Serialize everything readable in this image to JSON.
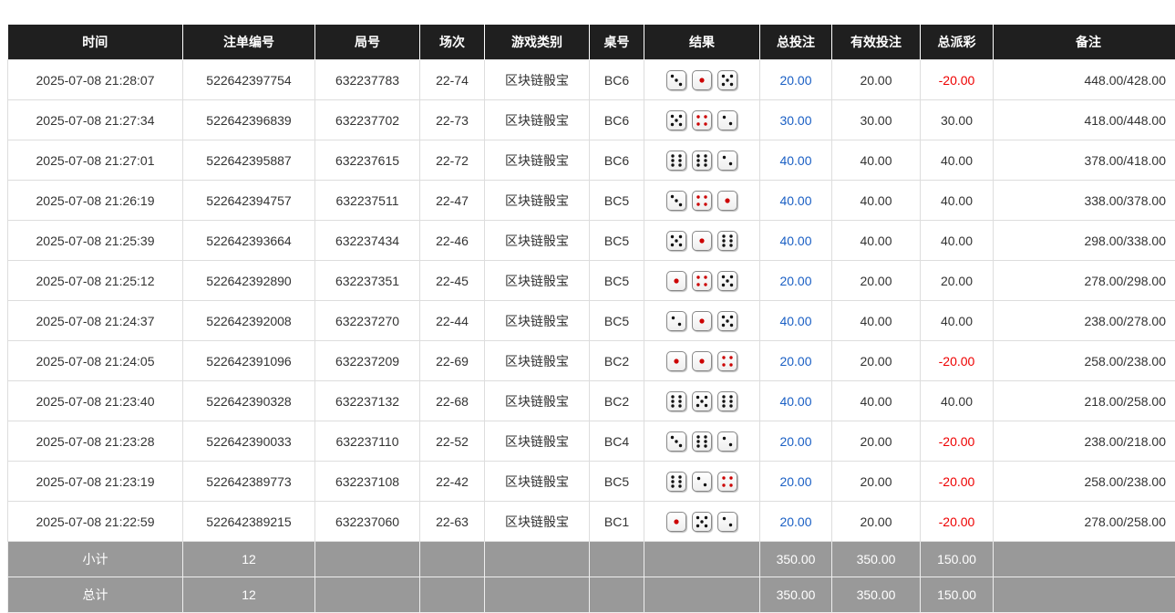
{
  "headers": [
    "时间",
    "注单编号",
    "局号",
    "场次",
    "游戏类别",
    "桌号",
    "结果",
    "总投注",
    "有效投注",
    "总派彩",
    "备注"
  ],
  "rows": [
    {
      "time": "2025-07-08 21:28:07",
      "bet_id": "522642397754",
      "round": "632237783",
      "session": "22-74",
      "game": "区块链骰宝",
      "table": "BC6",
      "dice": [
        3,
        1,
        5
      ],
      "bet": "20.00",
      "valid": "20.00",
      "payout": "-20.00",
      "memo": "448.00/428.00"
    },
    {
      "time": "2025-07-08 21:27:34",
      "bet_id": "522642396839",
      "round": "632237702",
      "session": "22-73",
      "game": "区块链骰宝",
      "table": "BC6",
      "dice": [
        5,
        4,
        2
      ],
      "bet": "30.00",
      "valid": "30.00",
      "payout": "30.00",
      "memo": "418.00/448.00"
    },
    {
      "time": "2025-07-08 21:27:01",
      "bet_id": "522642395887",
      "round": "632237615",
      "session": "22-72",
      "game": "区块链骰宝",
      "table": "BC6",
      "dice": [
        6,
        6,
        2
      ],
      "bet": "40.00",
      "valid": "40.00",
      "payout": "40.00",
      "memo": "378.00/418.00"
    },
    {
      "time": "2025-07-08 21:26:19",
      "bet_id": "522642394757",
      "round": "632237511",
      "session": "22-47",
      "game": "区块链骰宝",
      "table": "BC5",
      "dice": [
        3,
        4,
        1
      ],
      "bet": "40.00",
      "valid": "40.00",
      "payout": "40.00",
      "memo": "338.00/378.00"
    },
    {
      "time": "2025-07-08 21:25:39",
      "bet_id": "522642393664",
      "round": "632237434",
      "session": "22-46",
      "game": "区块链骰宝",
      "table": "BC5",
      "dice": [
        5,
        1,
        6
      ],
      "bet": "40.00",
      "valid": "40.00",
      "payout": "40.00",
      "memo": "298.00/338.00"
    },
    {
      "time": "2025-07-08 21:25:12",
      "bet_id": "522642392890",
      "round": "632237351",
      "session": "22-45",
      "game": "区块链骰宝",
      "table": "BC5",
      "dice": [
        1,
        4,
        5
      ],
      "bet": "20.00",
      "valid": "20.00",
      "payout": "20.00",
      "memo": "278.00/298.00"
    },
    {
      "time": "2025-07-08 21:24:37",
      "bet_id": "522642392008",
      "round": "632237270",
      "session": "22-44",
      "game": "区块链骰宝",
      "table": "BC5",
      "dice": [
        2,
        1,
        5
      ],
      "bet": "40.00",
      "valid": "40.00",
      "payout": "40.00",
      "memo": "238.00/278.00"
    },
    {
      "time": "2025-07-08 21:24:05",
      "bet_id": "522642391096",
      "round": "632237209",
      "session": "22-69",
      "game": "区块链骰宝",
      "table": "BC2",
      "dice": [
        1,
        1,
        4
      ],
      "bet": "20.00",
      "valid": "20.00",
      "payout": "-20.00",
      "memo": "258.00/238.00"
    },
    {
      "time": "2025-07-08 21:23:40",
      "bet_id": "522642390328",
      "round": "632237132",
      "session": "22-68",
      "game": "区块链骰宝",
      "table": "BC2",
      "dice": [
        6,
        5,
        6
      ],
      "bet": "40.00",
      "valid": "40.00",
      "payout": "40.00",
      "memo": "218.00/258.00"
    },
    {
      "time": "2025-07-08 21:23:28",
      "bet_id": "522642390033",
      "round": "632237110",
      "session": "22-52",
      "game": "区块链骰宝",
      "table": "BC4",
      "dice": [
        3,
        6,
        2
      ],
      "bet": "20.00",
      "valid": "20.00",
      "payout": "-20.00",
      "memo": "238.00/218.00"
    },
    {
      "time": "2025-07-08 21:23:19",
      "bet_id": "522642389773",
      "round": "632237108",
      "session": "22-42",
      "game": "区块链骰宝",
      "table": "BC5",
      "dice": [
        6,
        2,
        4
      ],
      "bet": "20.00",
      "valid": "20.00",
      "payout": "-20.00",
      "memo": "258.00/238.00"
    },
    {
      "time": "2025-07-08 21:22:59",
      "bet_id": "522642389215",
      "round": "632237060",
      "session": "22-63",
      "game": "区块链骰宝",
      "table": "BC1",
      "dice": [
        1,
        5,
        2
      ],
      "bet": "20.00",
      "valid": "20.00",
      "payout": "-20.00",
      "memo": "278.00/258.00"
    }
  ],
  "subtotal": {
    "label": "小计",
    "count": "12",
    "bet": "350.00",
    "valid": "350.00",
    "payout": "150.00"
  },
  "total": {
    "label": "总计",
    "count": "12",
    "bet": "350.00",
    "valid": "350.00",
    "payout": "150.00"
  },
  "colors": {
    "header_bg": "#1f1f1f",
    "bet_blue": "#1a5fc4",
    "loss_red": "#e00000",
    "footer_bg": "#999999"
  }
}
